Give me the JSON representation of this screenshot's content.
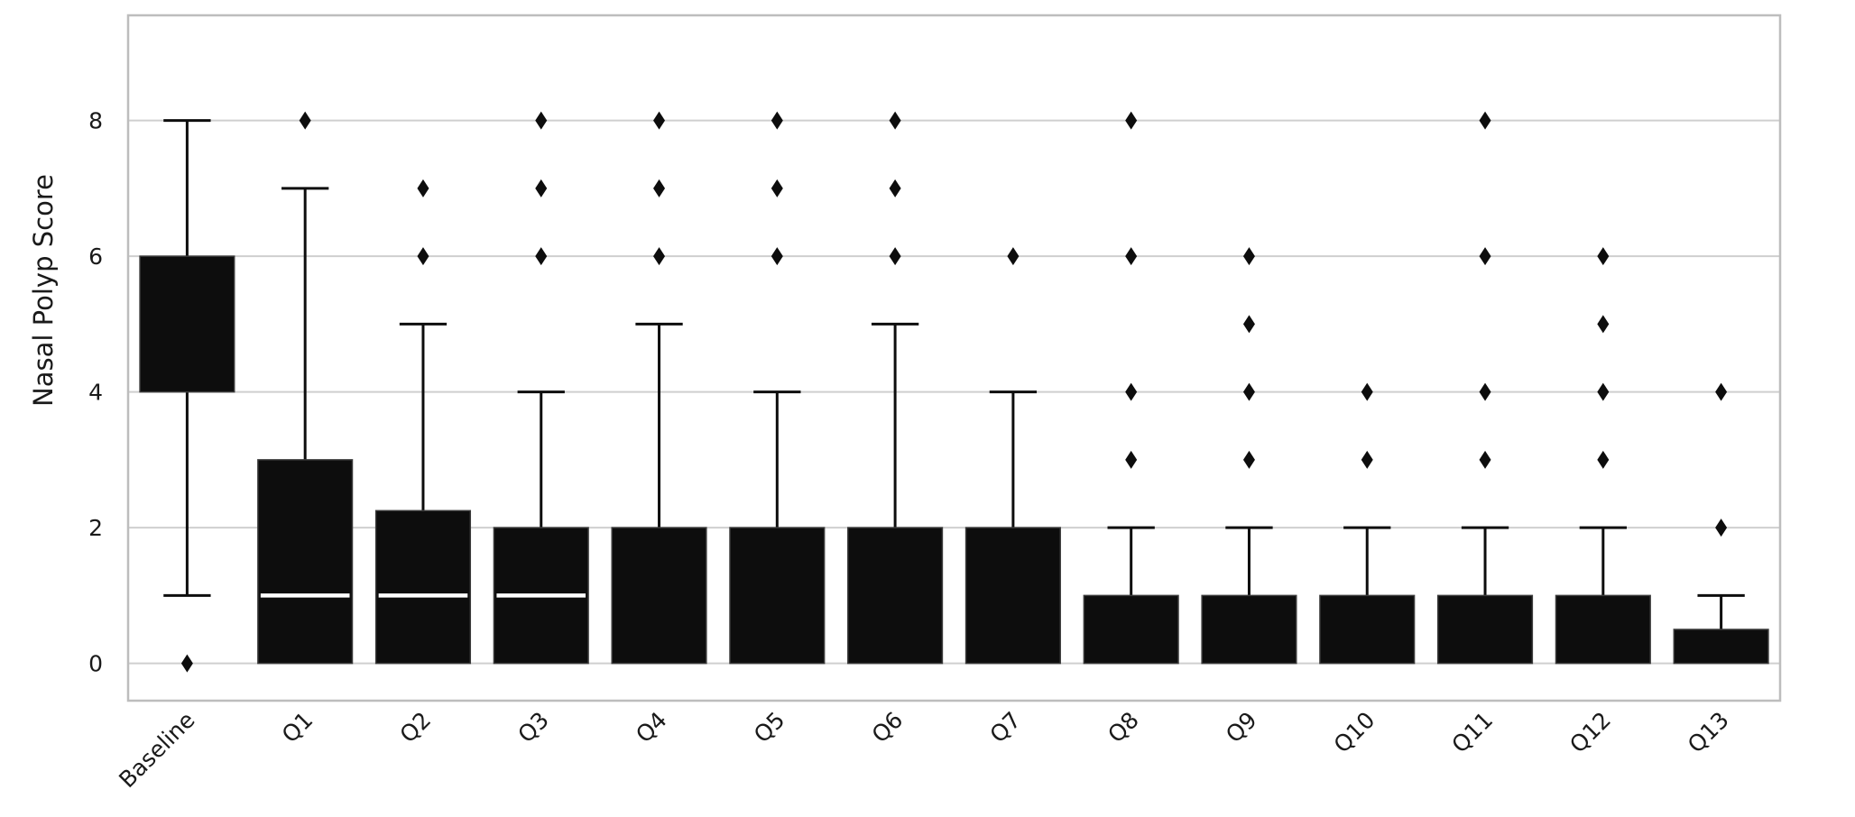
{
  "chart_data": {
    "type": "box",
    "title": "",
    "xlabel": "",
    "ylabel": "Nasal Polyp Score",
    "ylim": [
      -0.55,
      9.55
    ],
    "yticks": [
      0,
      2,
      4,
      6,
      8
    ],
    "grid": "horizontal",
    "legend": "none",
    "colors": {
      "box": "#0d0d0d",
      "median": "#ffffff",
      "whisker": "#0d0d0d",
      "grid": "#cfcfcf",
      "frame": "#bdbdbd"
    },
    "categories": [
      "Baseline",
      "Q1",
      "Q2",
      "Q3",
      "Q4",
      "Q5",
      "Q6",
      "Q7",
      "Q8",
      "Q9",
      "Q10",
      "Q11",
      "Q12",
      "Q13"
    ],
    "boxes": [
      {
        "label": "Baseline",
        "whisker_low": 1,
        "q1": 4,
        "median": 4,
        "q3": 6,
        "whisker_high": 8,
        "outliers": [
          0
        ]
      },
      {
        "label": "Q1",
        "whisker_low": 0,
        "q1": 0,
        "median": 1,
        "q3": 3,
        "whisker_high": 7,
        "outliers": [
          8
        ]
      },
      {
        "label": "Q2",
        "whisker_low": 0,
        "q1": 0,
        "median": 1,
        "q3": 2.25,
        "whisker_high": 5,
        "outliers": [
          6,
          7
        ]
      },
      {
        "label": "Q3",
        "whisker_low": 0,
        "q1": 0,
        "median": 1,
        "q3": 2,
        "whisker_high": 4,
        "outliers": [
          6,
          7,
          8
        ]
      },
      {
        "label": "Q4",
        "whisker_low": 0,
        "q1": 0,
        "median": 0,
        "q3": 2,
        "whisker_high": 5,
        "outliers": [
          6,
          7,
          8
        ]
      },
      {
        "label": "Q5",
        "whisker_low": 0,
        "q1": 0,
        "median": 0,
        "q3": 2,
        "whisker_high": 4,
        "outliers": [
          6,
          7,
          8
        ]
      },
      {
        "label": "Q6",
        "whisker_low": 0,
        "q1": 0,
        "median": 0,
        "q3": 2,
        "whisker_high": 5,
        "outliers": [
          6,
          7,
          8
        ]
      },
      {
        "label": "Q7",
        "whisker_low": 0,
        "q1": 0,
        "median": 0,
        "q3": 2,
        "whisker_high": 4,
        "outliers": [
          6
        ]
      },
      {
        "label": "Q8",
        "whisker_low": 0,
        "q1": 0,
        "median": 0,
        "q3": 1,
        "whisker_high": 2,
        "outliers": [
          3,
          4,
          6,
          8
        ]
      },
      {
        "label": "Q9",
        "whisker_low": 0,
        "q1": 0,
        "median": 0,
        "q3": 1,
        "whisker_high": 2,
        "outliers": [
          3,
          4,
          5,
          6
        ]
      },
      {
        "label": "Q10",
        "whisker_low": 0,
        "q1": 0,
        "median": 0,
        "q3": 1,
        "whisker_high": 2,
        "outliers": [
          3,
          4
        ]
      },
      {
        "label": "Q11",
        "whisker_low": 0,
        "q1": 0,
        "median": 0,
        "q3": 1,
        "whisker_high": 2,
        "outliers": [
          3,
          4,
          6,
          8
        ]
      },
      {
        "label": "Q12",
        "whisker_low": 0,
        "q1": 0,
        "median": 0,
        "q3": 1,
        "whisker_high": 2,
        "outliers": [
          3,
          4,
          5,
          6
        ]
      },
      {
        "label": "Q13",
        "whisker_low": 0,
        "q1": 0,
        "median": 0,
        "q3": 0.5,
        "whisker_high": 1,
        "outliers": [
          2,
          4
        ]
      }
    ]
  }
}
